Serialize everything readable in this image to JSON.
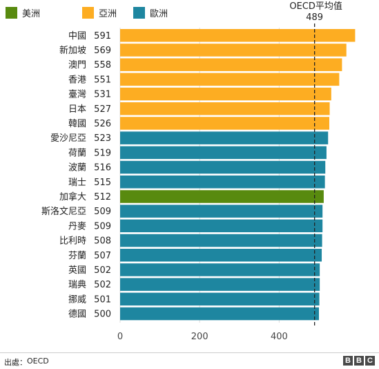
{
  "chart_data": {
    "type": "bar",
    "orientation": "horizontal",
    "legend": {
      "placement": "top-left",
      "entries": [
        {
          "key": "americas",
          "label": "美洲",
          "color": "#588a0f"
        },
        {
          "key": "asia",
          "label": "亞洲",
          "color": "#fdad22"
        },
        {
          "key": "europe",
          "label": "歐洲",
          "color": "#1e86a0"
        }
      ]
    },
    "categories": [
      "中國",
      "新加坡",
      "澳門",
      "香港",
      "臺灣",
      "日本",
      "韓國",
      "愛沙尼亞",
      "荷蘭",
      "波蘭",
      "瑞士",
      "加拿大",
      "斯洛文尼亞",
      "丹麥",
      "比利時",
      "芬蘭",
      "英國",
      "瑞典",
      "挪威",
      "德國"
    ],
    "values": [
      591,
      569,
      558,
      551,
      531,
      527,
      526,
      523,
      519,
      516,
      515,
      512,
      509,
      509,
      508,
      507,
      502,
      502,
      501,
      500
    ],
    "groups": [
      "asia",
      "asia",
      "asia",
      "asia",
      "asia",
      "asia",
      "asia",
      "europe",
      "europe",
      "europe",
      "europe",
      "americas",
      "europe",
      "europe",
      "europe",
      "europe",
      "europe",
      "europe",
      "europe",
      "europe"
    ],
    "reference_line": {
      "label": "OECD平均值",
      "value": 489,
      "value_label": "489",
      "style": "dashed"
    },
    "xlim": [
      0,
      600
    ],
    "xticks": [
      0,
      200,
      400
    ],
    "xtick_labels": [
      "0",
      "200",
      "400"
    ],
    "grid": true,
    "title": "",
    "xlabel": "",
    "ylabel": ""
  },
  "footer": {
    "source_label": "出處：",
    "source_value": "OECD",
    "logo_letters": [
      "B",
      "B",
      "C"
    ]
  }
}
